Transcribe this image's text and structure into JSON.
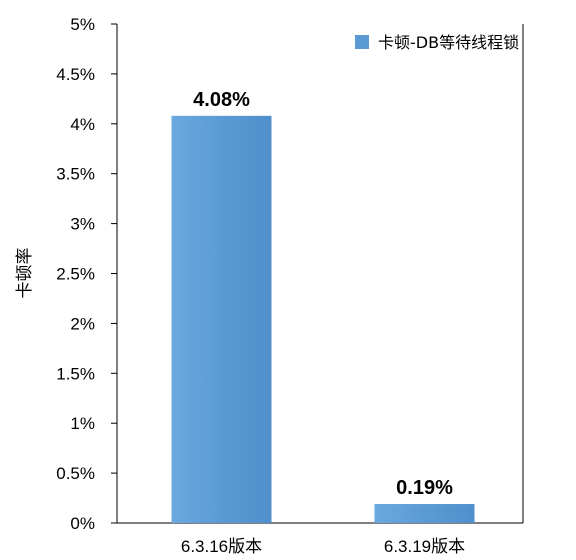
{
  "chart_data": {
    "type": "bar",
    "categories": [
      "6.3.16版本",
      "6.3.19版本"
    ],
    "series": [
      {
        "name": "卡顿-DB等待线程锁",
        "values": [
          4.08,
          0.19
        ],
        "color": "#5b9bd5"
      }
    ],
    "data_labels": [
      "4.08%",
      "0.19%"
    ],
    "ylabel": "卡顿率",
    "xlabel": "",
    "ylim": [
      0,
      5
    ],
    "yticks": [
      0,
      0.5,
      1,
      1.5,
      2,
      2.5,
      3,
      3.5,
      4,
      4.5,
      5
    ],
    "ytick_labels": [
      "0%",
      "0.5%",
      "1%",
      "1.5%",
      "2%",
      "2.5%",
      "3%",
      "3.5%",
      "4%",
      "4.5%",
      "5%"
    ],
    "legend": {
      "position": "top-right"
    },
    "grid": false
  }
}
